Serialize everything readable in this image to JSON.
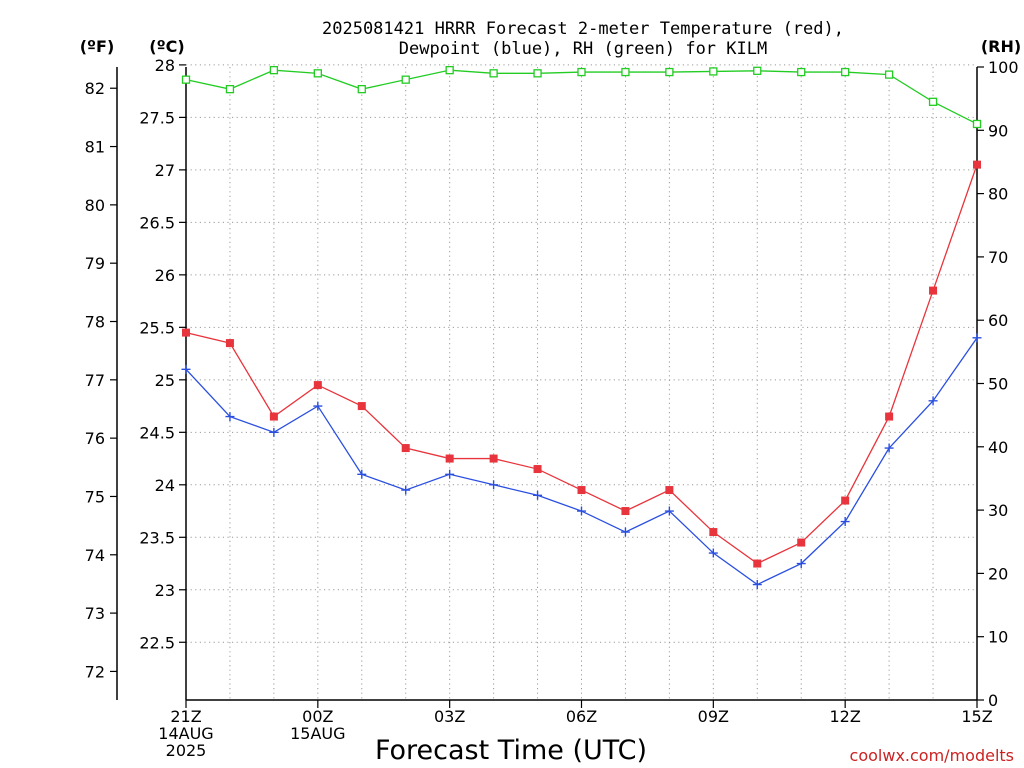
{
  "chart_data": {
    "type": "line",
    "title": [
      "2025081421 HRRR Forecast 2-meter Temperature (red),",
      "Dewpoint (blue), RH (green) for KILM"
    ],
    "xlabel": "Forecast Time (UTC)",
    "units": {
      "fahrenheit": "(ºF)",
      "celsius": "(ºC)",
      "rh": "(RH)"
    },
    "credit": "coolwx.com/modelts",
    "x_ticks": [
      {
        "hour": 0,
        "lines": [
          "21Z",
          "14AUG",
          "2025"
        ]
      },
      {
        "hour": 3,
        "lines": [
          "00Z",
          "15AUG"
        ]
      },
      {
        "hour": 6,
        "lines": [
          "03Z"
        ]
      },
      {
        "hour": 9,
        "lines": [
          "06Z"
        ]
      },
      {
        "hour": 12,
        "lines": [
          "09Z"
        ]
      },
      {
        "hour": 15,
        "lines": [
          "12Z"
        ]
      },
      {
        "hour": 18,
        "lines": [
          "15Z"
        ]
      }
    ],
    "x_range": [
      0,
      18
    ],
    "celsius_range": [
      21.95,
      27.98
    ],
    "celsius_ticks": [
      22.5,
      23,
      23.5,
      24,
      24.5,
      25,
      25.5,
      26,
      26.5,
      27,
      27.5,
      28
    ],
    "celsius_tick_labels": [
      "22.5",
      "23",
      "23.5",
      "24",
      "24.5",
      "25",
      "25.5",
      "26",
      "26.5",
      "27",
      "27.5",
      "28"
    ],
    "fahrenheit_ticks": [
      72,
      73,
      74,
      75,
      76,
      77,
      78,
      79,
      80,
      81,
      82
    ],
    "fahrenheit_tick_labels": [
      "72",
      "73",
      "74",
      "75",
      "76",
      "77",
      "78",
      "79",
      "80",
      "81",
      "82"
    ],
    "rh_range": [
      0,
      100
    ],
    "rh_ticks": [
      0,
      10,
      20,
      30,
      40,
      50,
      60,
      70,
      80,
      90,
      100
    ],
    "rh_tick_labels": [
      "0",
      "10",
      "20",
      "30",
      "40",
      "50",
      "60",
      "70",
      "80",
      "90",
      "100"
    ],
    "series": [
      {
        "name": "Temperature (red)",
        "color": "#e8343c",
        "marker": "filled-square",
        "axis": "celsius",
        "values": [
          25.45,
          25.35,
          24.65,
          24.95,
          24.75,
          24.35,
          24.25,
          24.25,
          24.15,
          23.95,
          23.75,
          23.95,
          23.55,
          23.25,
          23.45,
          23.85,
          24.65,
          25.85,
          27.05
        ]
      },
      {
        "name": "Dewpoint (blue)",
        "color": "#2a4fe0",
        "marker": "plus",
        "axis": "celsius",
        "values": [
          25.1,
          24.65,
          24.5,
          24.75,
          24.1,
          23.95,
          24.1,
          24.0,
          23.9,
          23.75,
          23.55,
          23.75,
          23.35,
          23.05,
          23.25,
          23.65,
          24.35,
          24.8,
          25.4
        ]
      },
      {
        "name": "RH (green)",
        "color": "#22cc22",
        "marker": "open-square",
        "axis": "rh",
        "values": [
          98,
          96.5,
          99.5,
          99,
          96.5,
          98,
          99.5,
          99,
          99,
          99.2,
          99.2,
          99.2,
          99.3,
          99.4,
          99.2,
          99.2,
          98.8,
          94.5,
          91
        ]
      }
    ]
  }
}
